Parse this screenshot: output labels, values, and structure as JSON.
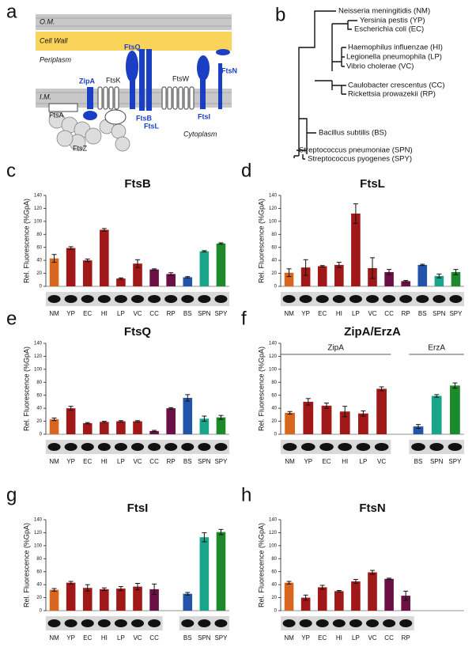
{
  "diagram": {
    "panel": "a",
    "om": "O.M.",
    "cell_wall": "Cell Wall",
    "periplasm": "Periplasm",
    "im": "I.M.",
    "cytoplasm": "Cytoplasm",
    "proteins": {
      "zipa": "ZipA",
      "ftsq": "FtsQ",
      "ftsk": "FtsK",
      "ftsw": "FtsW",
      "ftsn": "FtsN",
      "ftsa": "FtsA",
      "ftsz": "FtsZ",
      "ftsb": "FtsB",
      "ftsl": "FtsL",
      "ftsi": "FtsI"
    }
  },
  "tree": {
    "panel": "b",
    "species": [
      {
        "name": "Neisseria meningitidis (NM)",
        "color": "#d9661f"
      },
      {
        "name": "Yersinia pestis (YP)",
        "color": "#a01818"
      },
      {
        "name": "Escherichia coli (EC)",
        "color": "#a01818"
      },
      {
        "name": "Haemophilus influenzae (HI)",
        "color": "#a01818"
      },
      {
        "name": "Legionella pneumophila (LP)",
        "color": "#a01818"
      },
      {
        "name": "Vibrio cholerae (VC)",
        "color": "#a01818"
      },
      {
        "name": "Caulobacter crescentus (CC)",
        "color": "#6b1044"
      },
      {
        "name": "Rickettsia prowazekii (RP)",
        "color": "#6b1044"
      },
      {
        "name": "Bacillus subtilis (BS)",
        "color": "#2255aa"
      },
      {
        "name": "Streptococcus pneumoniae (SPN)",
        "color": "#1aa58a"
      },
      {
        "name": "Streptococcus pyogenes (SPY)",
        "color": "#1c8a2a"
      }
    ]
  },
  "chart_data": [
    {
      "type": "bar",
      "panel": "c",
      "title": "FtsB",
      "y_label": "Rel. Fluorescence (%GpA)",
      "categories": [
        "NM",
        "YP",
        "EC",
        "HI",
        "LP",
        "VC",
        "CC",
        "RP",
        "BS",
        "SPN",
        "SPY"
      ],
      "values": [
        43,
        59,
        40,
        87,
        12,
        35,
        26,
        19,
        14,
        54,
        66
      ],
      "errors": [
        6,
        2,
        2,
        2,
        1,
        6,
        1,
        2,
        1,
        1,
        1
      ],
      "colors": [
        "#d9661f",
        "#a01818",
        "#a01818",
        "#a01818",
        "#a01818",
        "#a01818",
        "#6b1044",
        "#6b1044",
        "#2255aa",
        "#1aa58a",
        "#1c8a2a"
      ],
      "ylim": [
        0,
        140
      ],
      "yticks": [
        0,
        20,
        40,
        60,
        80,
        100,
        120,
        140
      ]
    },
    {
      "type": "bar",
      "panel": "d",
      "title": "FtsL",
      "y_label": "Rel. Fluorescence (%GpA)",
      "categories": [
        "NM",
        "YP",
        "EC",
        "HI",
        "LP",
        "VC",
        "CC",
        "RP",
        "BS",
        "SPN",
        "SPY"
      ],
      "values": [
        21,
        29,
        31,
        33,
        112,
        28,
        22,
        8,
        33,
        16,
        22
      ],
      "errors": [
        6,
        12,
        1,
        4,
        15,
        16,
        4,
        1,
        1,
        3,
        4
      ],
      "colors": [
        "#d9661f",
        "#a01818",
        "#a01818",
        "#a01818",
        "#a01818",
        "#a01818",
        "#6b1044",
        "#6b1044",
        "#2255aa",
        "#1aa58a",
        "#1c8a2a"
      ],
      "ylim": [
        0,
        140
      ],
      "yticks": [
        0,
        20,
        40,
        60,
        80,
        100,
        120,
        140
      ]
    },
    {
      "type": "bar",
      "panel": "e",
      "title": "FtsQ",
      "y_label": "Rel. Fluorescence (%GpA)",
      "categories": [
        "NM",
        "YP",
        "EC",
        "HI",
        "LP",
        "VC",
        "CC",
        "RP",
        "BS",
        "SPN",
        "SPY"
      ],
      "values": [
        23,
        40,
        17,
        19,
        20,
        20,
        5,
        40,
        56,
        24,
        26
      ],
      "errors": [
        2,
        3,
        1,
        1,
        1,
        1,
        1,
        1,
        5,
        4,
        3
      ],
      "colors": [
        "#d9661f",
        "#a01818",
        "#a01818",
        "#a01818",
        "#a01818",
        "#a01818",
        "#6b1044",
        "#6b1044",
        "#2255aa",
        "#1aa58a",
        "#1c8a2a"
      ],
      "ylim": [
        0,
        140
      ],
      "yticks": [
        0,
        20,
        40,
        60,
        80,
        100,
        120,
        140
      ]
    },
    {
      "type": "bar",
      "panel": "f",
      "title": "ZipA/ErzA",
      "y_label": "Rel. Fluorescence (%GpA)",
      "groups": [
        "ZipA",
        "ErzA"
      ],
      "categories": [
        "NM",
        "YP",
        "EC",
        "HI",
        "LP",
        "VC",
        null,
        "BS",
        "SPN",
        "SPY"
      ],
      "values": [
        33,
        50,
        44,
        35,
        32,
        70,
        null,
        12,
        59,
        75
      ],
      "errors": [
        2,
        5,
        4,
        8,
        4,
        3,
        null,
        3,
        2,
        4
      ],
      "colors": [
        "#d9661f",
        "#a01818",
        "#a01818",
        "#a01818",
        "#a01818",
        "#a01818",
        null,
        "#2255aa",
        "#1aa58a",
        "#1c8a2a"
      ],
      "ylim": [
        0,
        140
      ],
      "yticks": [
        0,
        20,
        40,
        60,
        80,
        100,
        120,
        140
      ]
    },
    {
      "type": "bar",
      "panel": "g",
      "title": "FtsI",
      "y_label": "Rel. Fluorescence (%GpA)",
      "categories": [
        "NM",
        "YP",
        "EC",
        "HI",
        "LP",
        "VC",
        "CC",
        null,
        "BS",
        "SPN",
        "SPY"
      ],
      "values": [
        32,
        43,
        35,
        33,
        34,
        37,
        33,
        null,
        26,
        113,
        121
      ],
      "errors": [
        2,
        2,
        5,
        2,
        3,
        5,
        8,
        null,
        2,
        7,
        4
      ],
      "colors": [
        "#d9661f",
        "#a01818",
        "#a01818",
        "#a01818",
        "#a01818",
        "#a01818",
        "#6b1044",
        null,
        "#2255aa",
        "#1aa58a",
        "#1c8a2a"
      ],
      "ylim": [
        0,
        140
      ],
      "yticks": [
        0,
        20,
        40,
        60,
        80,
        100,
        120,
        140
      ]
    },
    {
      "type": "bar",
      "panel": "h",
      "title": "FtsN",
      "y_label": "Rel. Fluorescence (%GpA)",
      "categories": [
        "NM",
        "YP",
        "EC",
        "HI",
        "LP",
        "VC",
        "CC",
        "RP",
        null,
        null,
        null
      ],
      "values": [
        43,
        20,
        36,
        30,
        45,
        59,
        49,
        23,
        null,
        null,
        null
      ],
      "errors": [
        2,
        4,
        3,
        1,
        3,
        3,
        1,
        7,
        null,
        null,
        null
      ],
      "colors": [
        "#d9661f",
        "#a01818",
        "#a01818",
        "#a01818",
        "#a01818",
        "#a01818",
        "#6b1044",
        "#6b1044",
        null,
        null,
        null
      ],
      "ylim": [
        0,
        140
      ],
      "yticks": [
        0,
        20,
        40,
        60,
        80,
        100,
        120,
        140
      ]
    }
  ]
}
